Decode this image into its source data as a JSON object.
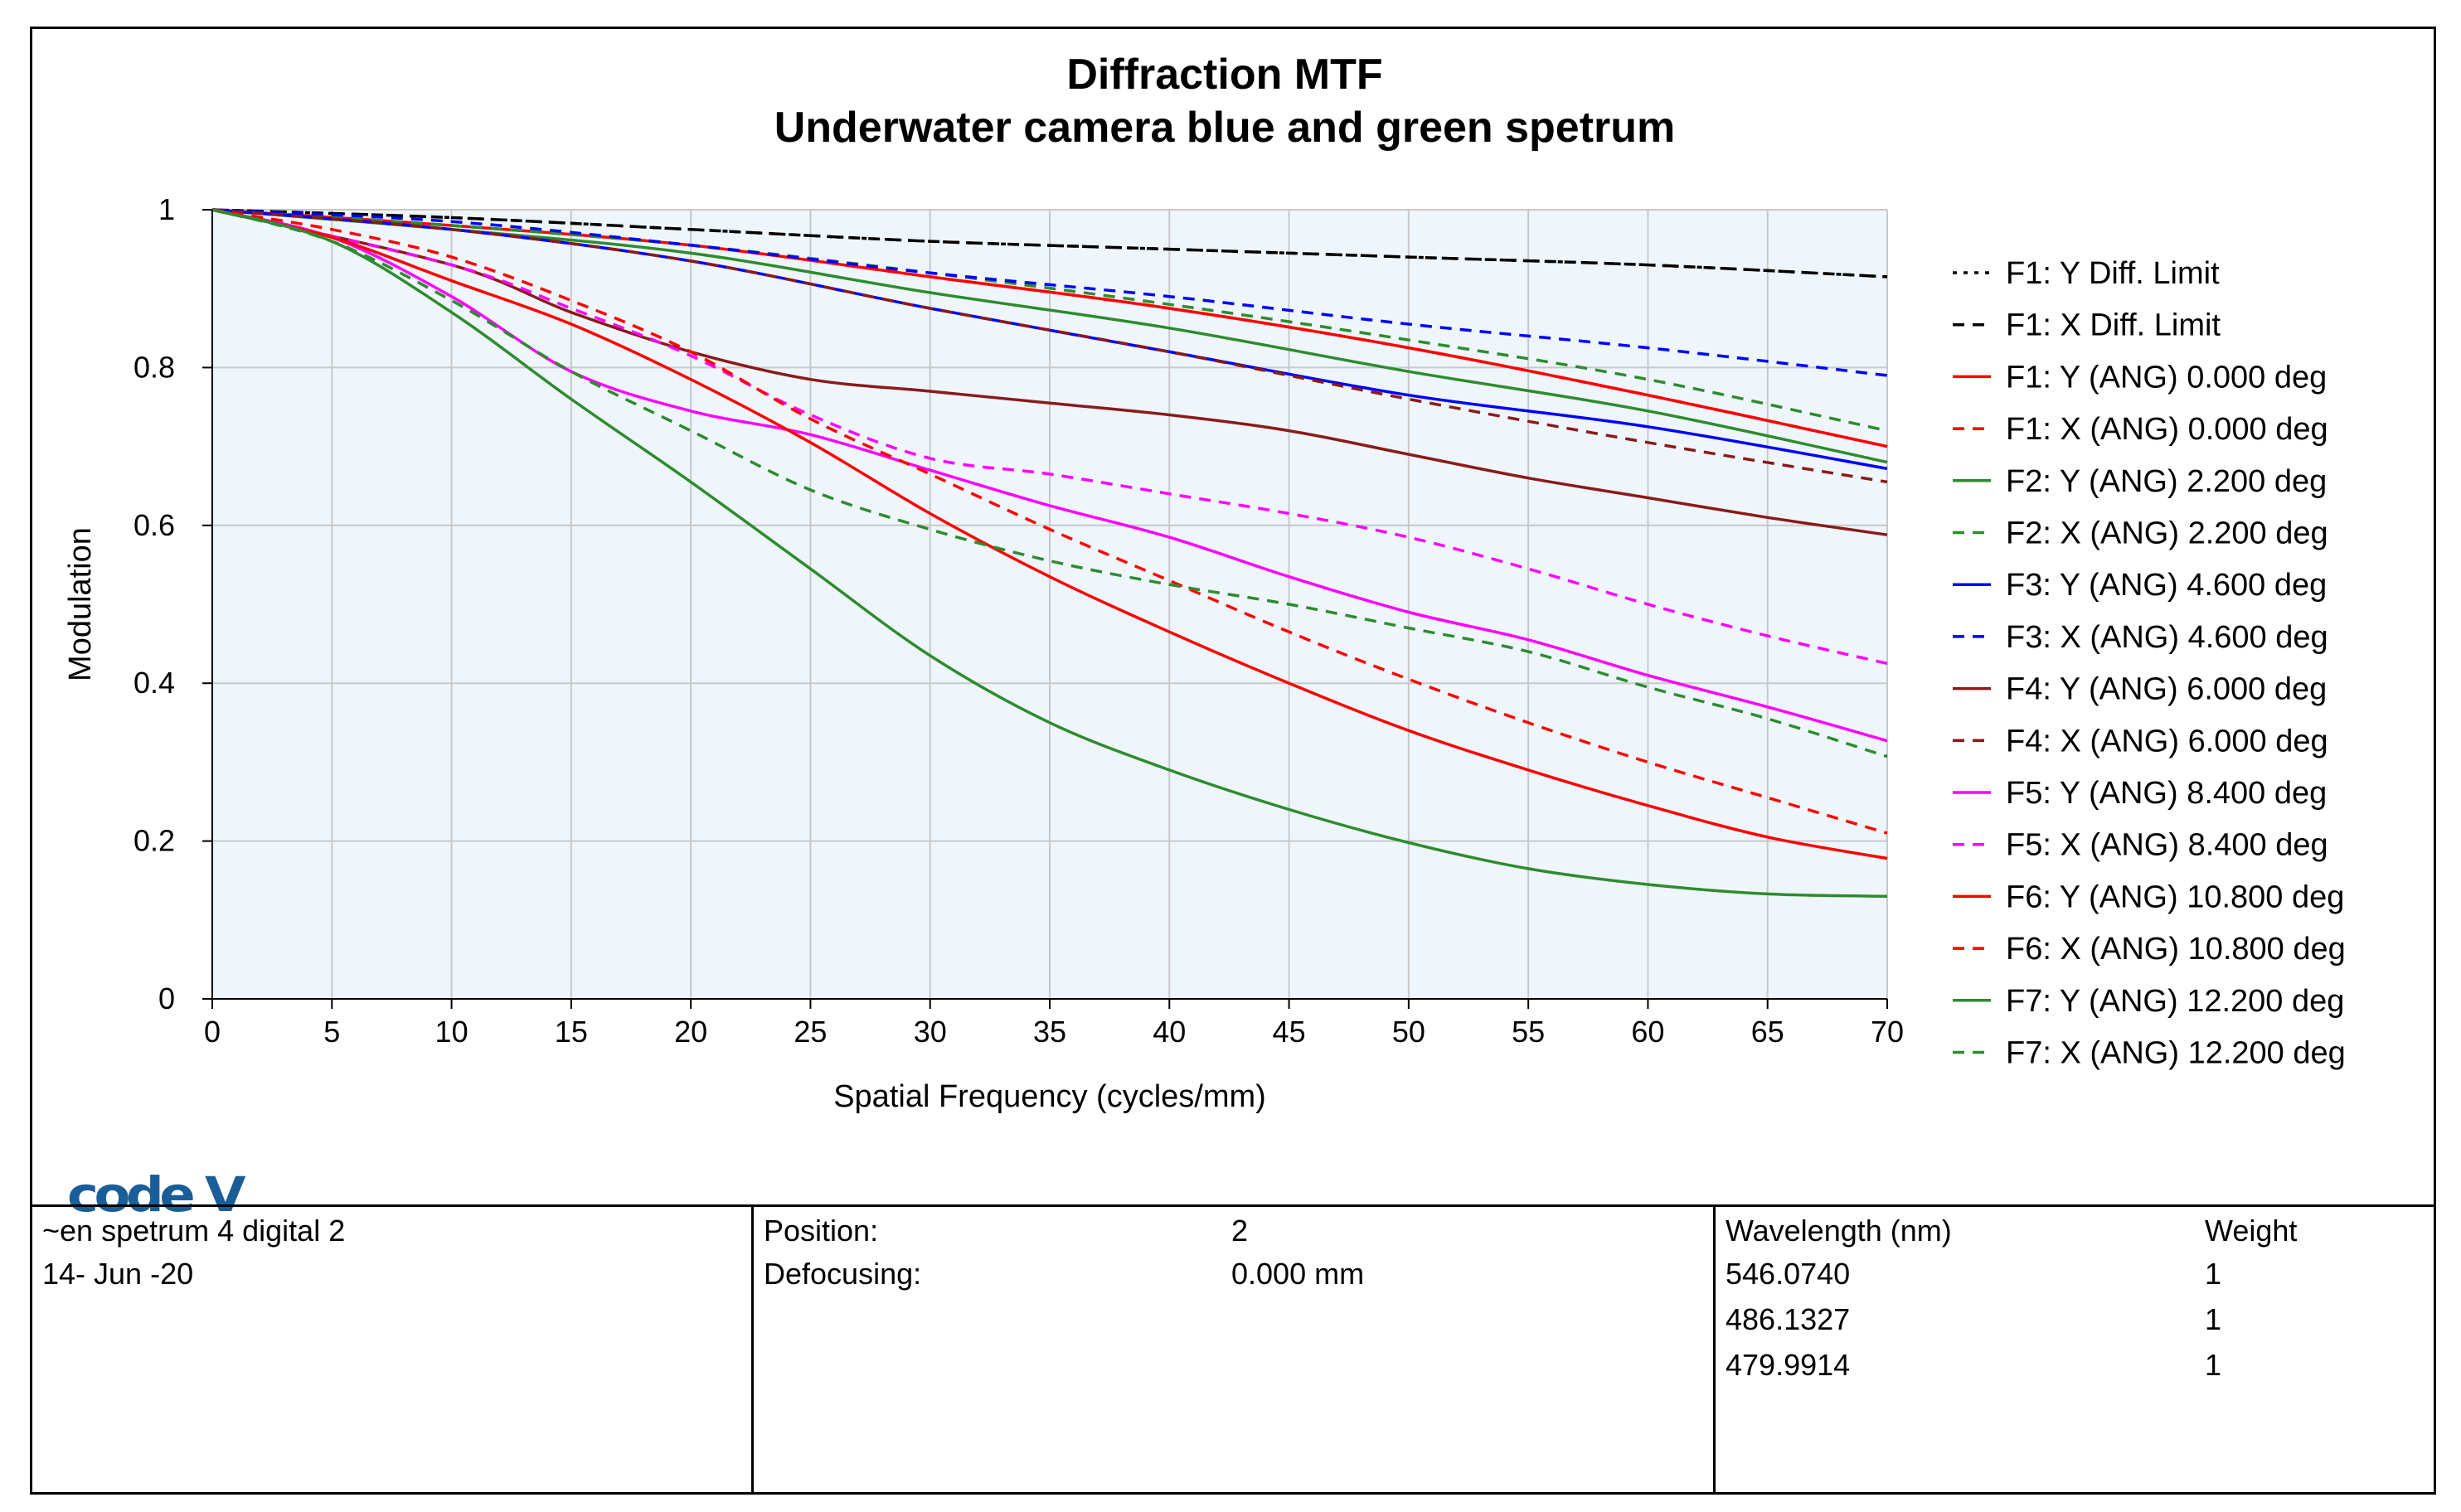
{
  "chart_data": {
    "type": "line",
    "title": "Diffraction MTF",
    "subtitle": "Underwater camera blue and green spetrum",
    "xlabel": "Spatial Frequency (cycles/mm)",
    "ylabel": "Modulation",
    "xlim": [
      0,
      70
    ],
    "ylim": [
      0,
      1
    ],
    "xticks": [
      0,
      5,
      10,
      15,
      20,
      25,
      30,
      35,
      40,
      45,
      50,
      55,
      60,
      65,
      70
    ],
    "yticks": [
      0,
      0.2,
      0.4,
      0.6,
      0.8,
      1
    ],
    "grid": true,
    "legend_position": "right",
    "colors": {
      "black": "#000000",
      "red": "#ff0000",
      "green": "#2e8b2e",
      "blue": "#0000ff",
      "darkred": "#8b1a1a",
      "magenta": "#ff00ff",
      "plot_bg": "#eef6fc",
      "grid": "#c8c8c8"
    },
    "series": [
      {
        "name": "F1: Y Diff. Limit",
        "color": "black",
        "dash": "dot",
        "x": [
          0,
          10,
          20,
          30,
          40,
          50,
          60,
          70
        ],
        "y": [
          1,
          0.99,
          0.975,
          0.96,
          0.95,
          0.94,
          0.93,
          0.915
        ]
      },
      {
        "name": "F1: X Diff. Limit",
        "color": "black",
        "dash": "dash",
        "x": [
          0,
          10,
          20,
          30,
          40,
          50,
          60,
          70
        ],
        "y": [
          1,
          0.99,
          0.975,
          0.96,
          0.95,
          0.94,
          0.93,
          0.915
        ]
      },
      {
        "name": "F1: Y (ANG) 0.000 deg",
        "color": "red",
        "dash": "solid",
        "x": [
          0,
          10,
          20,
          30,
          40,
          50,
          60,
          70
        ],
        "y": [
          1,
          0.98,
          0.955,
          0.915,
          0.875,
          0.825,
          0.765,
          0.7
        ]
      },
      {
        "name": "F1: X (ANG) 0.000 deg",
        "color": "red",
        "dash": "dash",
        "x": [
          0,
          10,
          20,
          30,
          40,
          50,
          60,
          70
        ],
        "y": [
          1,
          0.98,
          0.955,
          0.915,
          0.875,
          0.825,
          0.765,
          0.7
        ]
      },
      {
        "name": "F2: Y (ANG) 2.200 deg",
        "color": "green",
        "dash": "solid",
        "x": [
          0,
          10,
          20,
          30,
          40,
          50,
          60,
          70
        ],
        "y": [
          1,
          0.975,
          0.945,
          0.895,
          0.85,
          0.795,
          0.745,
          0.68
        ]
      },
      {
        "name": "F2: X (ANG) 2.200 deg",
        "color": "green",
        "dash": "dash",
        "x": [
          0,
          10,
          20,
          30,
          40,
          50,
          60,
          70
        ],
        "y": [
          1,
          0.98,
          0.955,
          0.92,
          0.88,
          0.835,
          0.785,
          0.72
        ]
      },
      {
        "name": "F3: Y (ANG) 4.600 deg",
        "color": "blue",
        "dash": "solid",
        "x": [
          0,
          10,
          20,
          30,
          40,
          50,
          60,
          70
        ],
        "y": [
          1,
          0.975,
          0.935,
          0.875,
          0.82,
          0.765,
          0.725,
          0.672
        ]
      },
      {
        "name": "F3: X (ANG) 4.600 deg",
        "color": "blue",
        "dash": "dash",
        "x": [
          0,
          10,
          20,
          30,
          40,
          50,
          60,
          70
        ],
        "y": [
          1,
          0.985,
          0.955,
          0.92,
          0.89,
          0.855,
          0.825,
          0.79
        ]
      },
      {
        "name": "F4: Y (ANG) 6.000 deg",
        "color": "darkred",
        "dash": "solid",
        "x": [
          0,
          10,
          15,
          20,
          25,
          30,
          35,
          40,
          45,
          50,
          55,
          60,
          65,
          70
        ],
        "y": [
          1,
          0.93,
          0.87,
          0.82,
          0.785,
          0.77,
          0.755,
          0.74,
          0.72,
          0.69,
          0.66,
          0.635,
          0.61,
          0.588
        ]
      },
      {
        "name": "F4: X (ANG) 6.000 deg",
        "color": "darkred",
        "dash": "dash",
        "x": [
          0,
          10,
          20,
          30,
          40,
          50,
          60,
          70
        ],
        "y": [
          1,
          0.975,
          0.935,
          0.875,
          0.82,
          0.76,
          0.705,
          0.655
        ]
      },
      {
        "name": "F5: Y (ANG) 8.400 deg",
        "color": "magenta",
        "dash": "solid",
        "x": [
          0,
          5,
          10,
          15,
          20,
          25,
          30,
          35,
          40,
          45,
          50,
          55,
          60,
          65,
          70
        ],
        "y": [
          1,
          0.965,
          0.89,
          0.795,
          0.745,
          0.715,
          0.67,
          0.625,
          0.585,
          0.535,
          0.49,
          0.455,
          0.41,
          0.37,
          0.327
        ]
      },
      {
        "name": "F5: X (ANG) 8.400 deg",
        "color": "magenta",
        "dash": "dash",
        "x": [
          0,
          10,
          15,
          20,
          25,
          30,
          35,
          40,
          45,
          50,
          55,
          60,
          65,
          70
        ],
        "y": [
          1,
          0.93,
          0.875,
          0.815,
          0.74,
          0.685,
          0.665,
          0.64,
          0.615,
          0.585,
          0.545,
          0.5,
          0.46,
          0.425
        ]
      },
      {
        "name": "F6: Y (ANG) 10.800 deg",
        "color": "red",
        "dash": "solid",
        "x": [
          0,
          5,
          10,
          15,
          20,
          25,
          30,
          35,
          40,
          45,
          50,
          55,
          60,
          65,
          70
        ],
        "y": [
          1,
          0.965,
          0.91,
          0.855,
          0.785,
          0.705,
          0.615,
          0.535,
          0.465,
          0.4,
          0.34,
          0.29,
          0.245,
          0.205,
          0.178
        ]
      },
      {
        "name": "F6: X (ANG) 10.800 deg",
        "color": "red",
        "dash": "dash",
        "x": [
          0,
          5,
          10,
          15,
          20,
          25,
          30,
          35,
          40,
          45,
          50,
          55,
          60,
          65,
          70
        ],
        "y": [
          1,
          0.975,
          0.94,
          0.885,
          0.82,
          0.735,
          0.665,
          0.595,
          0.53,
          0.465,
          0.405,
          0.35,
          0.3,
          0.255,
          0.21
        ]
      },
      {
        "name": "F7: Y (ANG) 12.200 deg",
        "color": "green",
        "dash": "solid",
        "x": [
          0,
          5,
          10,
          15,
          20,
          25,
          30,
          35,
          40,
          45,
          50,
          55,
          60,
          65,
          70
        ],
        "y": [
          1,
          0.96,
          0.87,
          0.76,
          0.655,
          0.545,
          0.435,
          0.35,
          0.29,
          0.24,
          0.198,
          0.165,
          0.145,
          0.133,
          0.13
        ]
      },
      {
        "name": "F7: X (ANG) 12.200 deg",
        "color": "green",
        "dash": "dash",
        "x": [
          0,
          5,
          10,
          15,
          20,
          25,
          30,
          35,
          40,
          45,
          50,
          55,
          60,
          65,
          70
        ],
        "y": [
          1,
          0.96,
          0.885,
          0.795,
          0.72,
          0.645,
          0.595,
          0.555,
          0.525,
          0.5,
          0.47,
          0.44,
          0.395,
          0.355,
          0.307
        ]
      }
    ]
  },
  "logo_text": "code V",
  "info": {
    "file_name": "~en spetrum 4 digital 2",
    "date": "14- Jun -20",
    "position_label": "Position:",
    "position_value": "2",
    "defocus_label": "Defocusing:",
    "defocus_value": "0.000 mm",
    "wavelength_header": "Wavelength (nm)",
    "weight_header": "Weight",
    "wavelengths": [
      {
        "nm": "546.0740",
        "weight": "1"
      },
      {
        "nm": "486.1327",
        "weight": "1"
      },
      {
        "nm": "479.9914",
        "weight": "1"
      }
    ]
  }
}
